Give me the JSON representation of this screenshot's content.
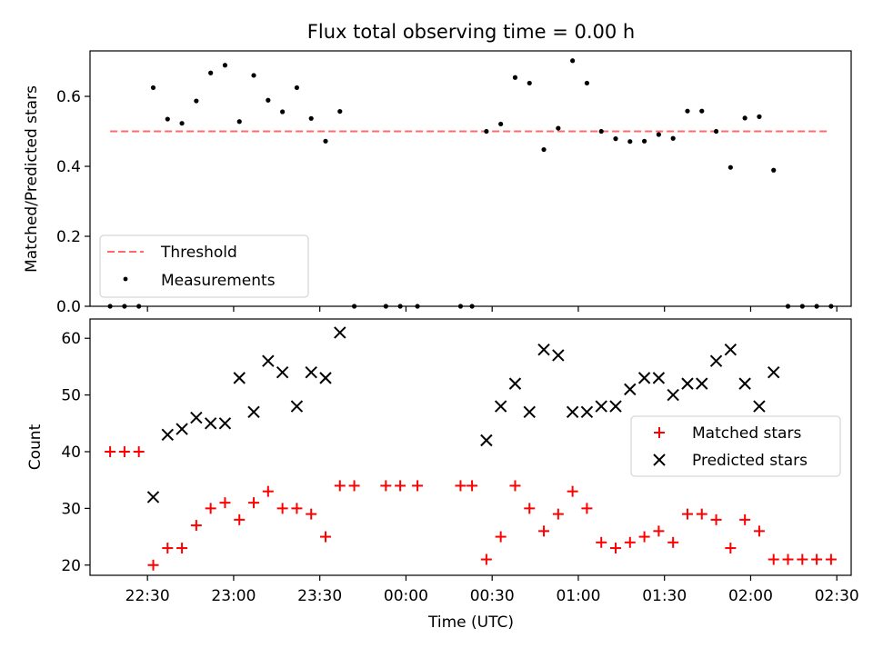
{
  "chart_data": [
    {
      "type": "scatter",
      "title": "Flux total observing time = 0.00 h",
      "xlabel": "",
      "ylabel": "Matched/Predicted stars",
      "ylim": [
        0,
        0.73
      ],
      "yticks": [
        "0.0",
        "0.2",
        "0.4",
        "0.6"
      ],
      "xticks": [
        "22:30",
        "23:00",
        "23:30",
        "00:00",
        "00:30",
        "01:00",
        "01:30",
        "02:00",
        "02:30"
      ],
      "legend_position": "lower left",
      "colors": {
        "threshold": "#ff6b6b",
        "measurements": "#000000"
      },
      "threshold": {
        "name": "Threshold",
        "value": 0.5,
        "x_start": "22:17",
        "x_end": "02:27"
      },
      "measurements": {
        "name": "Measurements",
        "points": [
          [
            "22:17",
            0.0
          ],
          [
            "22:22",
            0.0
          ],
          [
            "22:27",
            0.0
          ],
          [
            "22:32",
            0.625
          ],
          [
            "22:37",
            0.535
          ],
          [
            "22:42",
            0.523
          ],
          [
            "22:47",
            0.587
          ],
          [
            "22:52",
            0.667
          ],
          [
            "22:57",
            0.689
          ],
          [
            "23:02",
            0.528
          ],
          [
            "23:07",
            0.66
          ],
          [
            "23:12",
            0.589
          ],
          [
            "23:17",
            0.556
          ],
          [
            "23:22",
            0.625
          ],
          [
            "23:27",
            0.537
          ],
          [
            "23:32",
            0.472
          ],
          [
            "23:37",
            0.557
          ],
          [
            "23:42",
            0.0
          ],
          [
            "23:53",
            0.0
          ],
          [
            "23:58",
            0.0
          ],
          [
            "00:04",
            0.0
          ],
          [
            "00:19",
            0.0
          ],
          [
            "00:23",
            0.0
          ],
          [
            "00:28",
            0.5
          ],
          [
            "00:33",
            0.521
          ],
          [
            "00:38",
            0.654
          ],
          [
            "00:43",
            0.638
          ],
          [
            "00:48",
            0.448
          ],
          [
            "00:53",
            0.509
          ],
          [
            "00:58",
            0.702
          ],
          [
            "01:03",
            0.638
          ],
          [
            "01:08",
            0.5
          ],
          [
            "01:13",
            0.479
          ],
          [
            "01:18",
            0.471
          ],
          [
            "01:23",
            0.472
          ],
          [
            "01:28",
            0.491
          ],
          [
            "01:33",
            0.48
          ],
          [
            "01:38",
            0.558
          ],
          [
            "01:43",
            0.558
          ],
          [
            "01:48",
            0.5
          ],
          [
            "01:53",
            0.397
          ],
          [
            "01:58",
            0.538
          ],
          [
            "02:03",
            0.542
          ],
          [
            "02:08",
            0.389
          ],
          [
            "02:13",
            0.0
          ],
          [
            "02:18",
            0.0
          ],
          [
            "02:23",
            0.0
          ],
          [
            "02:28",
            0.0
          ]
        ]
      }
    },
    {
      "type": "scatter",
      "title": "",
      "xlabel": "Time (UTC)",
      "ylabel": "Count",
      "ylim": [
        18.2,
        63.4
      ],
      "yticks": [
        "20",
        "30",
        "40",
        "50",
        "60"
      ],
      "xticks": [
        "22:30",
        "23:00",
        "23:30",
        "00:00",
        "00:30",
        "01:00",
        "01:30",
        "02:00",
        "02:30"
      ],
      "legend_position": "center right",
      "colors": {
        "matched": "#ff0000",
        "predicted": "#000000"
      },
      "series": [
        {
          "name": "Matched stars",
          "points": [
            [
              "22:17",
              40
            ],
            [
              "22:22",
              40
            ],
            [
              "22:27",
              40
            ],
            [
              "22:32",
              20
            ],
            [
              "22:37",
              23
            ],
            [
              "22:42",
              23
            ],
            [
              "22:47",
              27
            ],
            [
              "22:52",
              30
            ],
            [
              "22:57",
              31
            ],
            [
              "23:02",
              28
            ],
            [
              "23:07",
              31
            ],
            [
              "23:12",
              33
            ],
            [
              "23:17",
              30
            ],
            [
              "23:22",
              30
            ],
            [
              "23:27",
              29
            ],
            [
              "23:32",
              25
            ],
            [
              "23:37",
              34
            ],
            [
              "23:42",
              34
            ],
            [
              "23:53",
              34
            ],
            [
              "23:58",
              34
            ],
            [
              "00:04",
              34
            ],
            [
              "00:19",
              34
            ],
            [
              "00:23",
              34
            ],
            [
              "00:28",
              21
            ],
            [
              "00:33",
              25
            ],
            [
              "00:38",
              34
            ],
            [
              "00:43",
              30
            ],
            [
              "00:48",
              26
            ],
            [
              "00:53",
              29
            ],
            [
              "00:58",
              33
            ],
            [
              "01:03",
              30
            ],
            [
              "01:08",
              24
            ],
            [
              "01:13",
              23
            ],
            [
              "01:18",
              24
            ],
            [
              "01:23",
              25
            ],
            [
              "01:28",
              26
            ],
            [
              "01:33",
              24
            ],
            [
              "01:38",
              29
            ],
            [
              "01:43",
              29
            ],
            [
              "01:48",
              28
            ],
            [
              "01:53",
              23
            ],
            [
              "01:58",
              28
            ],
            [
              "02:03",
              26
            ],
            [
              "02:08",
              21
            ],
            [
              "02:13",
              21
            ],
            [
              "02:18",
              21
            ],
            [
              "02:23",
              21
            ],
            [
              "02:28",
              21
            ]
          ]
        },
        {
          "name": "Predicted stars",
          "points": [
            [
              "22:32",
              32
            ],
            [
              "22:37",
              43
            ],
            [
              "22:42",
              44
            ],
            [
              "22:47",
              46
            ],
            [
              "22:52",
              45
            ],
            [
              "22:57",
              45
            ],
            [
              "23:02",
              53
            ],
            [
              "23:07",
              47
            ],
            [
              "23:12",
              56
            ],
            [
              "23:17",
              54
            ],
            [
              "23:22",
              48
            ],
            [
              "23:27",
              54
            ],
            [
              "23:32",
              53
            ],
            [
              "23:37",
              61
            ],
            [
              "00:28",
              42
            ],
            [
              "00:33",
              48
            ],
            [
              "00:38",
              52
            ],
            [
              "00:43",
              47
            ],
            [
              "00:48",
              58
            ],
            [
              "00:53",
              57
            ],
            [
              "00:58",
              47
            ],
            [
              "01:03",
              47
            ],
            [
              "01:08",
              48
            ],
            [
              "01:13",
              48
            ],
            [
              "01:18",
              51
            ],
            [
              "01:23",
              53
            ],
            [
              "01:28",
              53
            ],
            [
              "01:33",
              50
            ],
            [
              "01:38",
              52
            ],
            [
              "01:43",
              52
            ],
            [
              "01:48",
              56
            ],
            [
              "01:53",
              58
            ],
            [
              "01:58",
              52
            ],
            [
              "02:03",
              48
            ],
            [
              "02:08",
              54
            ]
          ]
        }
      ]
    }
  ]
}
